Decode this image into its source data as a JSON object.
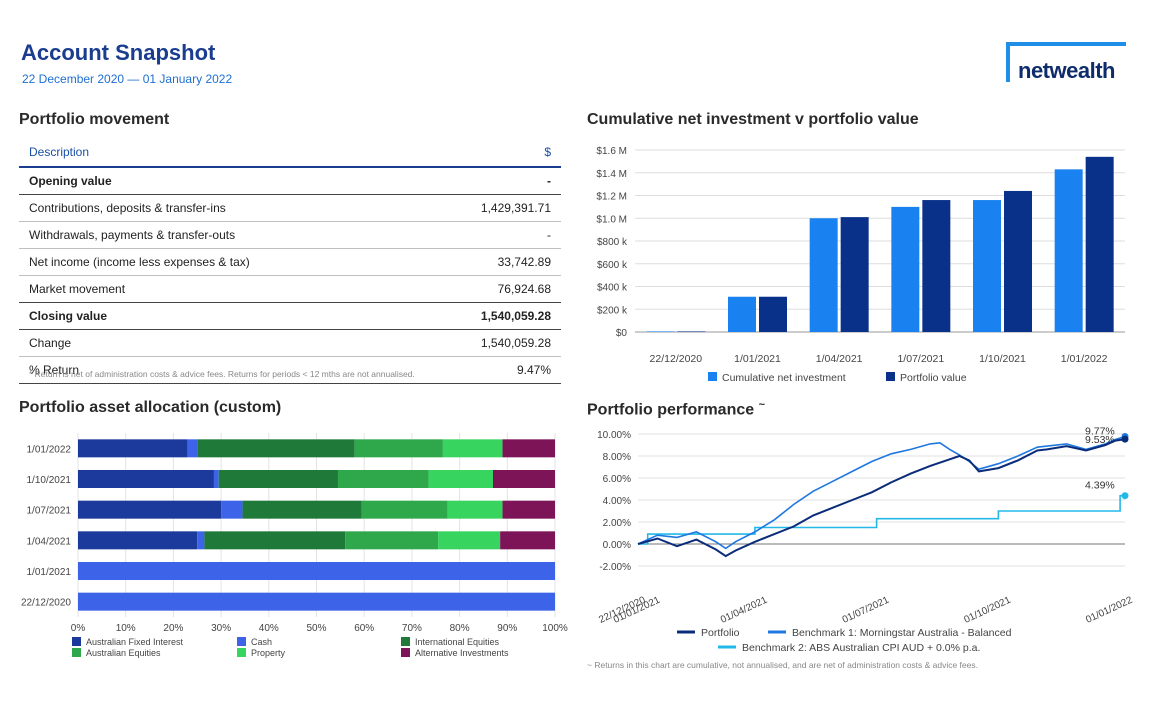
{
  "header": {
    "title": "Account Snapshot",
    "date_range": "22 December 2020 — 01 January 2022",
    "logo_text": "netwealth"
  },
  "portfolio_movement": {
    "title": "Portfolio movement",
    "col_description": "Description",
    "col_value": "$",
    "rows": [
      {
        "label": "Opening value",
        "value": "-",
        "bold": true
      },
      {
        "label": "Contributions, deposits & transfer-ins",
        "value": "1,429,391.71",
        "bold": false
      },
      {
        "label": "Withdrawals, payments & transfer-outs",
        "value": "-",
        "bold": false
      },
      {
        "label": "Net income (income less expenses & tax)",
        "value": "33,742.89",
        "bold": false
      },
      {
        "label": "Market movement",
        "value": "76,924.68",
        "bold": false
      },
      {
        "label": "Closing value",
        "value": "1,540,059.28",
        "bold": true
      },
      {
        "label": "Change",
        "value": "1,540,059.28",
        "bold": false
      },
      {
        "label": "% Return",
        "value": "9.47%",
        "bold": false
      }
    ],
    "footnote": "* Return is net of administration costs & advice fees. Returns for periods < 12 mths are not annualised."
  },
  "chart_data": [
    {
      "id": "cumulative",
      "type": "bar",
      "title": "Cumulative net investment v portfolio value",
      "categories": [
        "22/12/2020",
        "1/01/2021",
        "1/04/2021",
        "1/07/2021",
        "1/10/2021",
        "1/01/2022"
      ],
      "series": [
        {
          "name": "Cumulative net investment",
          "color": "#1a82f0",
          "values": [
            0.005,
            0.31,
            1.0,
            1.1,
            1.16,
            1.43
          ]
        },
        {
          "name": "Portfolio value",
          "color": "#0a3189",
          "values": [
            0.005,
            0.31,
            1.01,
            1.16,
            1.24,
            1.54
          ]
        }
      ],
      "ylim": [
        0,
        1.6
      ],
      "yticks": [
        0,
        0.2,
        0.4,
        0.6,
        0.8,
        1.0,
        1.2,
        1.4,
        1.6
      ],
      "ytick_labels": [
        "$0",
        "$200 k",
        "$400 k",
        "$600 k",
        "$800 k",
        "$1.0 M",
        "$1.2 M",
        "$1.4 M",
        "$1.6 M"
      ],
      "units": "$M"
    },
    {
      "id": "allocation",
      "type": "bar",
      "orientation": "horizontal-stacked-100",
      "title": "Portfolio asset allocation (custom)",
      "categories": [
        "1/01/2022",
        "1/10/2021",
        "1/07/2021",
        "1/04/2021",
        "1/01/2021",
        "22/12/2020"
      ],
      "series": [
        {
          "name": "Australian Fixed Interest",
          "color": "#1c3a9c",
          "values": [
            23,
            28.5,
            30,
            25,
            0,
            0
          ]
        },
        {
          "name": "Cash",
          "color": "#3d63e8",
          "values": [
            2,
            1,
            4.5,
            1.5,
            100,
            100
          ]
        },
        {
          "name": "International Equities",
          "color": "#1f7a3a",
          "values": [
            33,
            25,
            25,
            29.5,
            0,
            0
          ]
        },
        {
          "name": "Australian Equities",
          "color": "#2ea84b",
          "values": [
            18.5,
            19,
            18,
            19.5,
            0,
            0
          ]
        },
        {
          "name": "Property",
          "color": "#37d45f",
          "values": [
            12.5,
            13.5,
            11.5,
            13,
            0,
            0
          ]
        },
        {
          "name": "Alternative Investments",
          "color": "#7d1457",
          "values": [
            11,
            13,
            11,
            11.5,
            0,
            0
          ]
        }
      ],
      "xticks": [
        "0%",
        "10%",
        "20%",
        "30%",
        "40%",
        "50%",
        "60%",
        "70%",
        "80%",
        "90%",
        "100%"
      ],
      "xlim": [
        0,
        100
      ]
    },
    {
      "id": "performance",
      "type": "line",
      "title": "Portfolio performance",
      "title_marker": "~",
      "xlim": [
        0,
        100
      ],
      "ylim": [
        -2,
        10
      ],
      "yticks": [
        -2,
        0,
        2,
        4,
        6,
        8,
        10
      ],
      "ytick_labels": [
        "-2.00%",
        "0.00%",
        "2.00%",
        "4.00%",
        "6.00%",
        "8.00%",
        "10.00%"
      ],
      "xtick_labels": [
        {
          "pos": 0,
          "label": "22/12/2020"
        },
        {
          "pos": 3,
          "label": "01/01/2021"
        },
        {
          "pos": 25,
          "label": "01/04/2021"
        },
        {
          "pos": 50,
          "label": "01/07/2021"
        },
        {
          "pos": 75,
          "label": "01/10/2021"
        },
        {
          "pos": 100,
          "label": "01/01/2022"
        }
      ],
      "series": [
        {
          "name": "Portfolio",
          "color": "#0a2c7a",
          "end_label": "9.53%",
          "x": [
            0,
            4,
            8,
            12,
            16,
            18,
            20,
            24,
            28,
            32,
            36,
            40,
            44,
            48,
            52,
            56,
            60,
            64,
            66,
            68,
            70,
            74,
            78,
            82,
            84,
            88,
            92,
            96,
            98,
            100
          ],
          "y": [
            0,
            0.5,
            -0.2,
            0.4,
            -0.5,
            -1.1,
            -0.6,
            0.2,
            0.9,
            1.6,
            2.6,
            3.3,
            4.0,
            4.7,
            5.6,
            6.4,
            7.1,
            7.7,
            8.0,
            7.6,
            6.6,
            6.9,
            7.6,
            8.5,
            8.6,
            8.9,
            8.5,
            9.0,
            9.4,
            9.53
          ]
        },
        {
          "name": "Benchmark 1: Morningstar Australia - Balanced",
          "color": "#1e78e0",
          "end_label": "9.77%",
          "x": [
            0,
            4,
            8,
            12,
            16,
            18,
            20,
            24,
            28,
            32,
            36,
            40,
            44,
            48,
            52,
            56,
            60,
            62,
            64,
            66,
            68,
            70,
            74,
            78,
            82,
            84,
            88,
            92,
            96,
            98,
            100
          ],
          "y": [
            0,
            0.8,
            0.6,
            1.1,
            0.2,
            -0.4,
            0.2,
            1.1,
            2.2,
            3.6,
            4.8,
            5.7,
            6.6,
            7.5,
            8.2,
            8.6,
            9.1,
            9.2,
            8.6,
            8.1,
            7.5,
            6.8,
            7.3,
            8.0,
            8.8,
            8.9,
            9.1,
            8.6,
            9.1,
            9.5,
            9.77
          ]
        },
        {
          "name": "Benchmark 2: ABS Australian CPI AUD + 0.0% p.a.",
          "color": "#24b8e8",
          "end_label": "4.39%",
          "x": [
            0,
            2,
            2,
            24,
            24,
            49,
            49,
            74,
            74,
            99,
            99,
            100
          ],
          "y": [
            0,
            0,
            0.9,
            0.9,
            1.5,
            1.5,
            2.3,
            2.3,
            3.0,
            3.0,
            4.39,
            4.39
          ]
        }
      ],
      "footnote": "~ Returns in this chart are cumulative, not annualised, and are net of administration costs & advice fees."
    }
  ]
}
